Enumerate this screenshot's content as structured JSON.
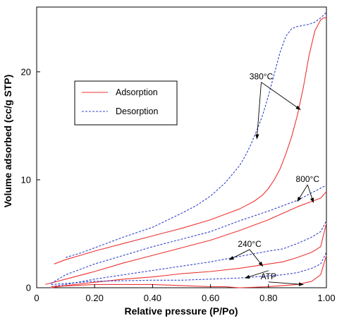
{
  "chart_data": {
    "type": "line",
    "xlabel": "Relative pressure (P/Po)",
    "ylabel": "Volume adsorbed (cc/g STP)",
    "xlim": [
      0,
      1.0
    ],
    "ylim": [
      0,
      26
    ],
    "x_ticks": [
      "0",
      "0.20",
      "0.40",
      "0.60",
      "0.80",
      "1.00"
    ],
    "x_tick_values": [
      0,
      0.2,
      0.4,
      0.6,
      0.8,
      1.0
    ],
    "y_ticks": [
      "0",
      "10",
      "20"
    ],
    "y_tick_values": [
      0,
      10,
      20
    ],
    "legend": {
      "placement": "upper-left",
      "entries": [
        {
          "label": "Adsorption",
          "style": "solid",
          "color": "#ee3333"
        },
        {
          "label": "Desorption",
          "style": "dashed",
          "color": "#3344cc"
        }
      ]
    },
    "colors": {
      "adsorption": "#ee3333",
      "desorption": "#3344cc"
    },
    "series": [
      {
        "sample": "380°C",
        "branch": "adsorption",
        "x": [
          0.06,
          0.1,
          0.15,
          0.2,
          0.3,
          0.4,
          0.5,
          0.6,
          0.65,
          0.7,
          0.75,
          0.78,
          0.8,
          0.82,
          0.84,
          0.86,
          0.88,
          0.9,
          0.92,
          0.94,
          0.96,
          0.98,
          0.99,
          1.0
        ],
        "y": [
          2.2,
          2.6,
          3.0,
          3.4,
          4.1,
          4.8,
          5.5,
          6.3,
          6.8,
          7.3,
          8.0,
          8.6,
          9.2,
          10.0,
          11.0,
          12.4,
          14.0,
          16.0,
          18.5,
          21.5,
          23.8,
          24.8,
          25.0,
          25.0
        ]
      },
      {
        "sample": "380°C",
        "branch": "desorption",
        "x": [
          0.1,
          0.15,
          0.2,
          0.3,
          0.4,
          0.5,
          0.55,
          0.6,
          0.65,
          0.7,
          0.72,
          0.74,
          0.76,
          0.78,
          0.8,
          0.82,
          0.84,
          0.86,
          0.88,
          0.9,
          0.92,
          0.94,
          0.96,
          0.98,
          1.0
        ],
        "y": [
          2.8,
          3.2,
          3.7,
          4.7,
          5.6,
          6.9,
          7.6,
          8.5,
          9.7,
          11.3,
          12.2,
          13.3,
          14.6,
          16.0,
          17.8,
          19.8,
          21.8,
          23.3,
          24.0,
          24.2,
          24.3,
          24.4,
          24.6,
          25.0,
          25.5
        ]
      },
      {
        "sample": "800°C",
        "branch": "adsorption",
        "x": [
          0.03,
          0.1,
          0.2,
          0.3,
          0.4,
          0.5,
          0.6,
          0.7,
          0.8,
          0.85,
          0.9,
          0.95,
          0.98,
          1.0
        ],
        "y": [
          0.3,
          0.8,
          1.5,
          2.3,
          3.0,
          3.7,
          4.4,
          5.3,
          6.3,
          6.9,
          7.5,
          8.0,
          8.3,
          8.9
        ]
      },
      {
        "sample": "800°C",
        "branch": "desorption",
        "x": [
          0.05,
          0.1,
          0.2,
          0.3,
          0.4,
          0.5,
          0.6,
          0.7,
          0.8,
          0.85,
          0.9,
          0.95,
          1.0
        ],
        "y": [
          0.4,
          1.2,
          2.2,
          3.0,
          3.8,
          4.5,
          5.2,
          6.2,
          7.1,
          7.6,
          8.1,
          8.8,
          9.5
        ]
      },
      {
        "sample": "240°C",
        "branch": "adsorption",
        "x": [
          0.05,
          0.1,
          0.2,
          0.3,
          0.4,
          0.5,
          0.6,
          0.7,
          0.8,
          0.85,
          0.9,
          0.95,
          0.98,
          1.0
        ],
        "y": [
          0.0,
          0.2,
          0.5,
          0.8,
          1.0,
          1.3,
          1.5,
          1.8,
          2.2,
          2.4,
          2.8,
          3.3,
          3.8,
          6.0
        ]
      },
      {
        "sample": "240°C",
        "branch": "desorption",
        "x": [
          0.05,
          0.1,
          0.2,
          0.3,
          0.4,
          0.5,
          0.6,
          0.7,
          0.8,
          0.85,
          0.9,
          0.95,
          0.98,
          1.0
        ],
        "y": [
          0.1,
          0.3,
          0.8,
          1.2,
          1.6,
          2.0,
          2.4,
          2.9,
          3.4,
          3.6,
          4.1,
          4.7,
          5.2,
          6.2
        ]
      },
      {
        "sample": "ATP",
        "branch": "adsorption",
        "x": [
          0.05,
          0.2,
          0.4,
          0.5,
          0.6,
          0.65,
          0.7,
          0.8,
          0.85,
          0.9,
          0.95,
          0.98,
          1.0
        ],
        "y": [
          0.1,
          0.3,
          0.3,
          0.2,
          0.1,
          0.1,
          0.0,
          0.1,
          0.2,
          0.3,
          0.6,
          1.2,
          3.0
        ]
      },
      {
        "sample": "ATP",
        "branch": "desorption",
        "x": [
          0.05,
          0.2,
          0.4,
          0.5,
          0.6,
          0.7,
          0.8,
          0.85,
          0.9,
          0.95,
          0.98,
          1.0
        ],
        "y": [
          0.3,
          0.6,
          0.7,
          0.7,
          0.8,
          0.9,
          1.1,
          1.2,
          1.4,
          1.8,
          2.2,
          3.3
        ]
      }
    ],
    "annotations": [
      {
        "text": "380°C",
        "x": 0.775,
        "y": 19.3,
        "arrow_to": [
          [
            0.76,
            13.8
          ],
          [
            0.91,
            16.5
          ]
        ]
      },
      {
        "text": "800°C",
        "x": 0.935,
        "y": 9.8,
        "arrow_to": [
          [
            0.9,
            8.0
          ],
          [
            0.955,
            7.9
          ]
        ]
      },
      {
        "text": "240°C",
        "x": 0.735,
        "y": 3.8,
        "arrow_to": [
          [
            0.665,
            2.6
          ],
          [
            0.78,
            2.0
          ]
        ]
      },
      {
        "text": "ATP",
        "x": 0.8,
        "y": 0.8,
        "arrow_to": [
          [
            0.72,
            0.9
          ],
          [
            0.92,
            0.3
          ]
        ]
      }
    ]
  }
}
